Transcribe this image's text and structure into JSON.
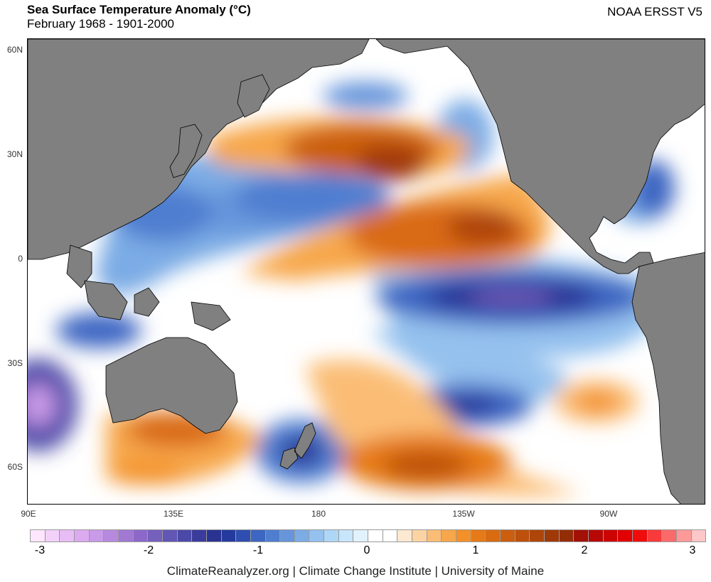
{
  "header": {
    "title": "Sea Surface Temperature Anomaly (°C)",
    "subtitle": "February 1968 - 1901-2000",
    "dataset": "NOAA ERSST V5"
  },
  "map": {
    "lat_labels": [
      "60N",
      "30N",
      "0",
      "30S",
      "60S"
    ],
    "lon_labels": [
      "90E",
      "135E",
      "180",
      "135W",
      "90W"
    ],
    "land_color": "#808080",
    "features": [
      {
        "name": "east-asia-landmass"
      },
      {
        "name": "north-america-landmass"
      },
      {
        "name": "south-america-landmass"
      },
      {
        "name": "australia-landmass"
      },
      {
        "name": "maritime-continent-islands"
      },
      {
        "name": "new-zealand-landmass"
      },
      {
        "name": "central-pacific-warm-anomaly"
      },
      {
        "name": "north-pacific-warm-anomaly"
      },
      {
        "name": "equatorial-cold-tongue-anomaly"
      },
      {
        "name": "southeast-pacific-cold-anomaly"
      }
    ]
  },
  "colorbar": {
    "colors": [
      "#ffe6ff",
      "#f3d1fa",
      "#e8bdf5",
      "#dcaaf0",
      "#c99ae8",
      "#b689de",
      "#a178d4",
      "#8c69c9",
      "#7660bd",
      "#6156b3",
      "#4b49a8",
      "#3a3b9c",
      "#2a3292",
      "#243a9e",
      "#2e4fb1",
      "#3c66c2",
      "#4f7ed0",
      "#6695db",
      "#7cace5",
      "#94c1ee",
      "#aed6f6",
      "#c8e6fb",
      "#e2f2fd",
      "#ffffff",
      "#ffffff",
      "#fde9d1",
      "#fcd3a3",
      "#fbbd76",
      "#f7a74b",
      "#f39027",
      "#e67a16",
      "#d96b12",
      "#cb5e0f",
      "#bd510c",
      "#ae450a",
      "#a03908",
      "#922d07",
      "#a21006",
      "#b70806",
      "#cc0404",
      "#e00202",
      "#f10c0c",
      "#f83a3a",
      "#fb6a6a",
      "#fd9999",
      "#ffc7c7"
    ],
    "labels": [
      "-3",
      "-2",
      "-1",
      "0",
      "1",
      "2",
      "3"
    ]
  },
  "footer": {
    "credit": "ClimateReanalyzer.org | Climate Change Institute | University of Maine"
  }
}
